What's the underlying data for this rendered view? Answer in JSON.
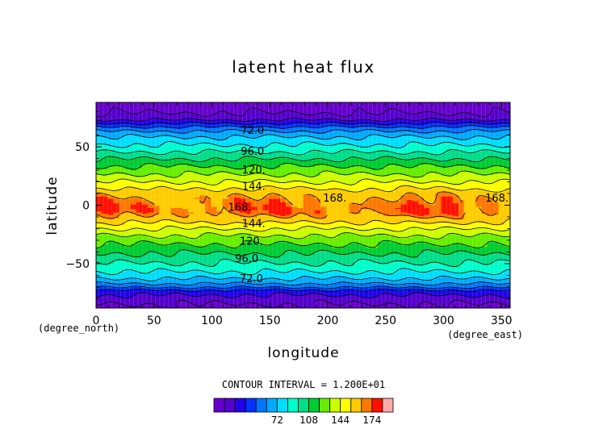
{
  "chart_data": {
    "type": "heatmap",
    "title": "latent heat flux",
    "xlabel": "longitude",
    "ylabel": "latitude",
    "x_unit": "(degree_east)",
    "y_unit": "(degree_north)",
    "xlim": [
      0,
      357.5
    ],
    "ylim": [
      -88,
      88
    ],
    "x_ticks": [
      0,
      50,
      100,
      150,
      200,
      250,
      300,
      350
    ],
    "y_ticks": [
      -50,
      0,
      50
    ],
    "contour_interval_text": "CONTOUR INTERVAL = 1.200E+01",
    "levels": [
      12,
      24,
      36,
      48,
      60,
      72,
      84,
      96,
      108,
      120,
      132,
      144,
      156,
      168,
      174
    ],
    "colorbar_ticks": [
      72,
      108,
      144,
      174
    ],
    "colors": [
      "#6600cc",
      "#5500cc",
      "#2200ee",
      "#0033ff",
      "#0077ff",
      "#00aaff",
      "#00ddff",
      "#00ffcc",
      "#00dd88",
      "#00cc33",
      "#66ee00",
      "#ccff00",
      "#ffff00",
      "#ffcc00",
      "#ff7700",
      "#ff1100",
      "#ffaaaa"
    ],
    "latitude_profile": {
      "lat": [
        -88,
        -80,
        -74,
        -70,
        -66,
        -62,
        -58,
        -54,
        -50,
        -46,
        -42,
        -38,
        -34,
        -30,
        -26,
        -22,
        -18,
        -14,
        -10,
        -6,
        -2,
        2,
        6,
        10,
        14,
        18,
        22,
        26,
        30,
        34,
        38,
        42,
        46,
        50,
        54,
        58,
        62,
        66,
        70,
        74,
        80,
        88
      ],
      "value": [
        8,
        18,
        30,
        50,
        64,
        74,
        82,
        89,
        95,
        101,
        107,
        113,
        119,
        125,
        132,
        140,
        149,
        158,
        166,
        171,
        172,
        170,
        168,
        164,
        156,
        148,
        140,
        133,
        126,
        119,
        111,
        103,
        95,
        87,
        80,
        73,
        64,
        52,
        36,
        20,
        10,
        4
      ]
    },
    "contour_labels": [
      {
        "text": "72.0",
        "lon": 125,
        "lat": 64
      },
      {
        "text": "96.0",
        "lon": 125,
        "lat": 46
      },
      {
        "text": "120.",
        "lon": 126,
        "lat": 30
      },
      {
        "text": "144.",
        "lon": 126,
        "lat": 16
      },
      {
        "text": "168.",
        "lon": 196,
        "lat": 6
      },
      {
        "text": "168.",
        "lon": 336,
        "lat": 6
      },
      {
        "text": "168.",
        "lon": 114,
        "lat": -2
      },
      {
        "text": "144.",
        "lon": 126,
        "lat": -16
      },
      {
        "text": "120.",
        "lon": 124,
        "lat": -31
      },
      {
        "text": "96.0",
        "lon": 120,
        "lat": -46
      },
      {
        "text": "72.0",
        "lon": 124,
        "lat": -63
      }
    ]
  }
}
